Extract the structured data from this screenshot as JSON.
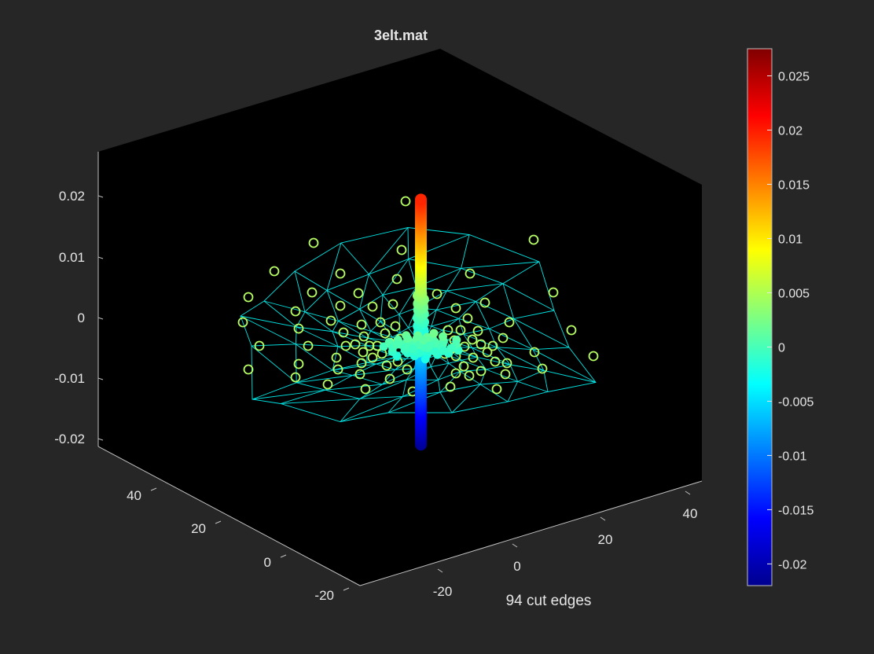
{
  "figure": {
    "background": "#262626",
    "axes_background": "#000000",
    "mesh_color": "#00e5e5",
    "node_marker_color": "#b8ff66"
  },
  "chart_data": {
    "type": "scatter",
    "view": "3d",
    "title": "3elt.mat",
    "xlabel": "94 cut edges",
    "ylabel": "",
    "zlabel": "",
    "z_ticks": [
      "0.02",
      "0.01",
      "0",
      "-0.01",
      "-0.02"
    ],
    "left_axis_ticks": [
      "40",
      "20",
      "0",
      "-20"
    ],
    "right_axis_ticks": [
      "-20",
      "0",
      "20",
      "40"
    ],
    "zlim": [
      -0.025,
      0.025
    ],
    "colormap": "jet",
    "colorbar": {
      "position": "right",
      "range": [
        -0.022,
        0.0275
      ],
      "ticks": [
        {
          "value": 0.025,
          "label": "0.025"
        },
        {
          "value": 0.02,
          "label": "0.02"
        },
        {
          "value": 0.015,
          "label": "0.015"
        },
        {
          "value": 0.01,
          "label": "0.01"
        },
        {
          "value": 0.005,
          "label": "0.005"
        },
        {
          "value": 0,
          "label": "0"
        },
        {
          "value": -0.005,
          "label": "-0.005"
        },
        {
          "value": -0.01,
          "label": "-0.01"
        },
        {
          "value": -0.015,
          "label": "-0.015"
        },
        {
          "value": -0.02,
          "label": "-0.02"
        }
      ]
    },
    "vertical_series": {
      "description_note": "",
      "z_range": [
        -0.021,
        0.0195
      ]
    },
    "grid": false,
    "legend": "none"
  }
}
